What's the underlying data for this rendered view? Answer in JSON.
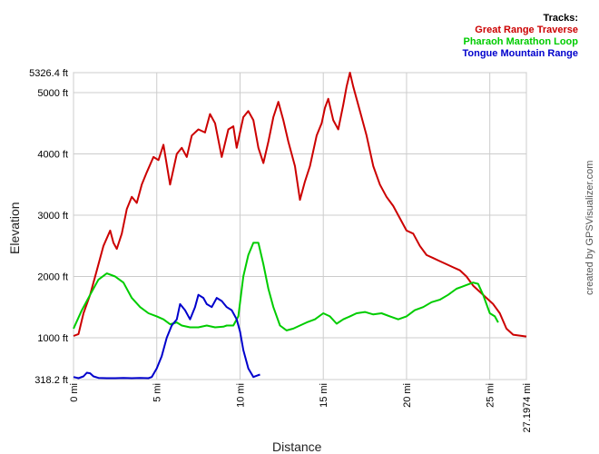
{
  "legend": {
    "title": "Tracks:",
    "items": [
      {
        "label": "Great Range Traverse",
        "color": "#cc0000"
      },
      {
        "label": "Pharaoh Marathon Loop",
        "color": "#00cc00"
      },
      {
        "label": "Tongue Mountain Range",
        "color": "#0000cc"
      }
    ]
  },
  "credit": "created by GPSVisualizer.com",
  "chart_data": {
    "type": "line",
    "xlabel": "Distance",
    "ylabel": "Elevation",
    "xlim": [
      0,
      27.1974
    ],
    "ylim": [
      318.2,
      5326.4
    ],
    "x_ticks": [
      {
        "v": 0,
        "label": "0 mi"
      },
      {
        "v": 5,
        "label": "5 mi"
      },
      {
        "v": 10,
        "label": "10 mi"
      },
      {
        "v": 15,
        "label": "15 mi"
      },
      {
        "v": 20,
        "label": "20 mi"
      },
      {
        "v": 25,
        "label": "25 mi"
      },
      {
        "v": 27.1974,
        "label": "27.1974 mi"
      }
    ],
    "y_ticks": [
      {
        "v": 318.2,
        "label": "318.2 ft"
      },
      {
        "v": 1000,
        "label": "1000 ft"
      },
      {
        "v": 2000,
        "label": "2000 ft"
      },
      {
        "v": 3000,
        "label": "3000 ft"
      },
      {
        "v": 4000,
        "label": "4000 ft"
      },
      {
        "v": 5000,
        "label": "5000 ft"
      },
      {
        "v": 5326.4,
        "label": "5326.4 ft"
      }
    ],
    "grid": true,
    "series": [
      {
        "name": "Great Range Traverse",
        "color": "#cc0000",
        "points": [
          [
            0,
            1030
          ],
          [
            0.3,
            1060
          ],
          [
            0.6,
            1400
          ],
          [
            1.0,
            1700
          ],
          [
            1.4,
            2100
          ],
          [
            1.8,
            2500
          ],
          [
            2.2,
            2750
          ],
          [
            2.4,
            2550
          ],
          [
            2.6,
            2450
          ],
          [
            2.9,
            2700
          ],
          [
            3.2,
            3100
          ],
          [
            3.5,
            3300
          ],
          [
            3.8,
            3200
          ],
          [
            4.1,
            3500
          ],
          [
            4.4,
            3700
          ],
          [
            4.8,
            3950
          ],
          [
            5.1,
            3900
          ],
          [
            5.4,
            4150
          ],
          [
            5.8,
            3500
          ],
          [
            6.2,
            4000
          ],
          [
            6.5,
            4100
          ],
          [
            6.8,
            3950
          ],
          [
            7.1,
            4300
          ],
          [
            7.5,
            4400
          ],
          [
            7.9,
            4350
          ],
          [
            8.2,
            4650
          ],
          [
            8.5,
            4500
          ],
          [
            8.9,
            3950
          ],
          [
            9.3,
            4400
          ],
          [
            9.6,
            4450
          ],
          [
            9.8,
            4100
          ],
          [
            10.2,
            4600
          ],
          [
            10.5,
            4700
          ],
          [
            10.8,
            4550
          ],
          [
            11.1,
            4100
          ],
          [
            11.4,
            3850
          ],
          [
            11.7,
            4200
          ],
          [
            12.0,
            4600
          ],
          [
            12.3,
            4850
          ],
          [
            12.6,
            4550
          ],
          [
            12.9,
            4200
          ],
          [
            13.3,
            3800
          ],
          [
            13.6,
            3250
          ],
          [
            13.9,
            3550
          ],
          [
            14.2,
            3800
          ],
          [
            14.6,
            4300
          ],
          [
            14.9,
            4500
          ],
          [
            15.1,
            4750
          ],
          [
            15.3,
            4900
          ],
          [
            15.6,
            4550
          ],
          [
            15.9,
            4400
          ],
          [
            16.2,
            4800
          ],
          [
            16.4,
            5100
          ],
          [
            16.6,
            5326
          ],
          [
            16.8,
            5100
          ],
          [
            17.2,
            4700
          ],
          [
            17.6,
            4300
          ],
          [
            18.0,
            3800
          ],
          [
            18.4,
            3500
          ],
          [
            18.8,
            3300
          ],
          [
            19.2,
            3150
          ],
          [
            19.6,
            2950
          ],
          [
            20.0,
            2750
          ],
          [
            20.4,
            2700
          ],
          [
            20.8,
            2500
          ],
          [
            21.2,
            2350
          ],
          [
            21.6,
            2300
          ],
          [
            22.0,
            2250
          ],
          [
            22.4,
            2200
          ],
          [
            22.8,
            2150
          ],
          [
            23.2,
            2100
          ],
          [
            23.6,
            2000
          ],
          [
            24.0,
            1850
          ],
          [
            24.4,
            1750
          ],
          [
            24.8,
            1650
          ],
          [
            25.2,
            1550
          ],
          [
            25.6,
            1400
          ],
          [
            26.0,
            1150
          ],
          [
            26.4,
            1050
          ],
          [
            27.1974,
            1020
          ]
        ]
      },
      {
        "name": "Pharaoh Marathon Loop",
        "color": "#00cc00",
        "points": [
          [
            0,
            1150
          ],
          [
            0.5,
            1450
          ],
          [
            1.0,
            1700
          ],
          [
            1.5,
            1950
          ],
          [
            2.0,
            2050
          ],
          [
            2.5,
            2000
          ],
          [
            3.0,
            1900
          ],
          [
            3.5,
            1650
          ],
          [
            4.0,
            1500
          ],
          [
            4.5,
            1400
          ],
          [
            5.0,
            1350
          ],
          [
            5.4,
            1300
          ],
          [
            5.8,
            1220
          ],
          [
            6.2,
            1250
          ],
          [
            6.5,
            1200
          ],
          [
            7.0,
            1170
          ],
          [
            7.5,
            1170
          ],
          [
            8.0,
            1200
          ],
          [
            8.5,
            1170
          ],
          [
            9.0,
            1180
          ],
          [
            9.2,
            1200
          ],
          [
            9.6,
            1200
          ],
          [
            9.9,
            1350
          ],
          [
            10.2,
            2000
          ],
          [
            10.5,
            2350
          ],
          [
            10.8,
            2550
          ],
          [
            11.1,
            2550
          ],
          [
            11.4,
            2200
          ],
          [
            11.7,
            1800
          ],
          [
            12.0,
            1500
          ],
          [
            12.4,
            1200
          ],
          [
            12.8,
            1120
          ],
          [
            13.2,
            1150
          ],
          [
            13.6,
            1200
          ],
          [
            14.0,
            1250
          ],
          [
            14.5,
            1300
          ],
          [
            15.0,
            1400
          ],
          [
            15.4,
            1350
          ],
          [
            15.8,
            1230
          ],
          [
            16.2,
            1300
          ],
          [
            16.6,
            1350
          ],
          [
            17.0,
            1400
          ],
          [
            17.5,
            1420
          ],
          [
            18.0,
            1380
          ],
          [
            18.5,
            1400
          ],
          [
            19.0,
            1350
          ],
          [
            19.5,
            1300
          ],
          [
            20.0,
            1350
          ],
          [
            20.5,
            1450
          ],
          [
            21.0,
            1500
          ],
          [
            21.5,
            1580
          ],
          [
            22.0,
            1620
          ],
          [
            22.5,
            1700
          ],
          [
            23.0,
            1800
          ],
          [
            23.5,
            1850
          ],
          [
            24.0,
            1900
          ],
          [
            24.3,
            1880
          ],
          [
            24.6,
            1700
          ],
          [
            25.0,
            1400
          ],
          [
            25.3,
            1350
          ],
          [
            25.5,
            1250
          ]
        ]
      },
      {
        "name": "Tongue Mountain Range",
        "color": "#0000cc",
        "points": [
          [
            0,
            360
          ],
          [
            0.3,
            340
          ],
          [
            0.6,
            370
          ],
          [
            0.8,
            430
          ],
          [
            1.0,
            420
          ],
          [
            1.2,
            370
          ],
          [
            1.5,
            345
          ],
          [
            2.0,
            340
          ],
          [
            2.5,
            340
          ],
          [
            3.0,
            345
          ],
          [
            3.5,
            340
          ],
          [
            4.0,
            345
          ],
          [
            4.5,
            340
          ],
          [
            4.7,
            360
          ],
          [
            5.0,
            500
          ],
          [
            5.3,
            700
          ],
          [
            5.6,
            1000
          ],
          [
            5.9,
            1200
          ],
          [
            6.2,
            1300
          ],
          [
            6.4,
            1550
          ],
          [
            6.7,
            1450
          ],
          [
            7.0,
            1300
          ],
          [
            7.3,
            1500
          ],
          [
            7.5,
            1700
          ],
          [
            7.8,
            1650
          ],
          [
            8.0,
            1550
          ],
          [
            8.3,
            1500
          ],
          [
            8.6,
            1650
          ],
          [
            8.9,
            1600
          ],
          [
            9.2,
            1500
          ],
          [
            9.5,
            1450
          ],
          [
            9.8,
            1300
          ],
          [
            10.0,
            1100
          ],
          [
            10.2,
            800
          ],
          [
            10.5,
            500
          ],
          [
            10.8,
            360
          ],
          [
            11.0,
            380
          ],
          [
            11.2,
            400
          ]
        ]
      }
    ]
  }
}
